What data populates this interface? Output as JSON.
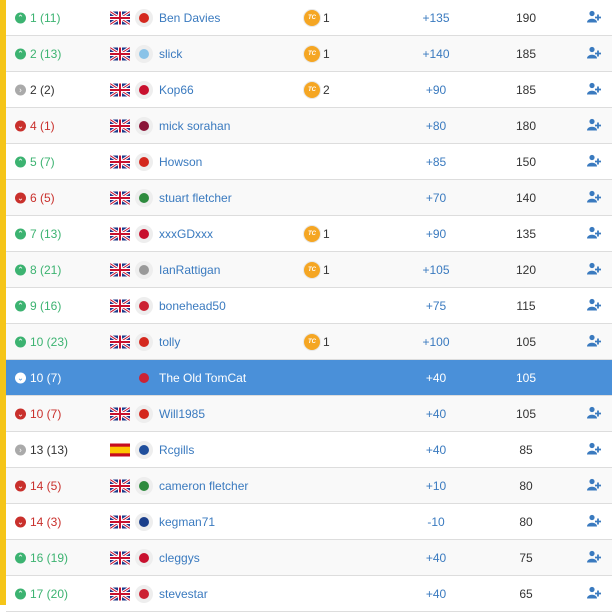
{
  "colors": {
    "up": "#3cb371",
    "down": "#c9302c",
    "same": "#aaaaaa",
    "highlight": "#4a90d9",
    "link": "#3a7abf",
    "accent": "#f5c518",
    "chip": "#f5a623"
  },
  "rows": [
    {
      "move": "up",
      "rank": "1 (11)",
      "flag": "uk",
      "crest": "#d4281e",
      "name": "Ben Davies",
      "chips": "1",
      "diff": "+135",
      "points": "190"
    },
    {
      "move": "up",
      "rank": "2 (13)",
      "flag": "uk",
      "crest": "#8ac3e8",
      "name": "slick",
      "chips": "1",
      "diff": "+140",
      "points": "185"
    },
    {
      "move": "same",
      "rank": "2 (2)",
      "flag": "uk",
      "crest": "#c8102e",
      "name": "Kop66",
      "chips": "2",
      "diff": "+90",
      "points": "185"
    },
    {
      "move": "down",
      "rank": "4 (1)",
      "flag": "uk",
      "crest": "#8a1538",
      "name": "mick sorahan",
      "chips": "",
      "diff": "+80",
      "points": "180"
    },
    {
      "move": "up",
      "rank": "5 (7)",
      "flag": "uk",
      "crest": "#d4281e",
      "name": "Howson",
      "chips": "",
      "diff": "+85",
      "points": "150"
    },
    {
      "move": "down",
      "rank": "6 (5)",
      "flag": "uk",
      "crest": "#2e8b3e",
      "name": "stuart fletcher",
      "chips": "",
      "diff": "+70",
      "points": "140"
    },
    {
      "move": "up",
      "rank": "7 (13)",
      "flag": "uk",
      "crest": "#c8102e",
      "name": "xxxGDxxx",
      "chips": "1",
      "diff": "+90",
      "points": "135"
    },
    {
      "move": "up",
      "rank": "8 (21)",
      "flag": "uk",
      "crest": "#999999",
      "name": "IanRattigan",
      "chips": "1",
      "diff": "+105",
      "points": "120"
    },
    {
      "move": "up",
      "rank": "9 (16)",
      "flag": "uk",
      "crest": "#cc2233",
      "name": "bonehead50",
      "chips": "",
      "diff": "+75",
      "points": "115"
    },
    {
      "move": "up",
      "rank": "10 (23)",
      "flag": "uk",
      "crest": "#d4281e",
      "name": "tolly",
      "chips": "1",
      "diff": "+100",
      "points": "105"
    },
    {
      "move": "down",
      "rank": "10 (7)",
      "flag": "",
      "crest": "#cc2233",
      "name": "The Old TomCat",
      "chips": "",
      "diff": "+40",
      "points": "105",
      "me": true
    },
    {
      "move": "down",
      "rank": "10 (7)",
      "flag": "uk",
      "crest": "#d4281e",
      "name": "Will1985",
      "chips": "",
      "diff": "+40",
      "points": "105"
    },
    {
      "move": "same",
      "rank": "13 (13)",
      "flag": "es",
      "crest": "#1f4e9c",
      "name": "Rcgills",
      "chips": "",
      "diff": "+40",
      "points": "85"
    },
    {
      "move": "down",
      "rank": "14 (5)",
      "flag": "uk",
      "crest": "#2e8b3e",
      "name": "cameron fletcher",
      "chips": "",
      "diff": "+10",
      "points": "80"
    },
    {
      "move": "down",
      "rank": "14 (3)",
      "flag": "uk",
      "crest": "#1b3f8b",
      "name": "kegman71",
      "chips": "",
      "diff": "-10",
      "points": "80"
    },
    {
      "move": "up",
      "rank": "16 (19)",
      "flag": "uk",
      "crest": "#c8102e",
      "name": "cleggys",
      "chips": "",
      "diff": "+40",
      "points": "75"
    },
    {
      "move": "up",
      "rank": "17 (20)",
      "flag": "uk",
      "crest": "#cc2233",
      "name": "stevestar",
      "chips": "",
      "diff": "+40",
      "points": "65"
    }
  ]
}
